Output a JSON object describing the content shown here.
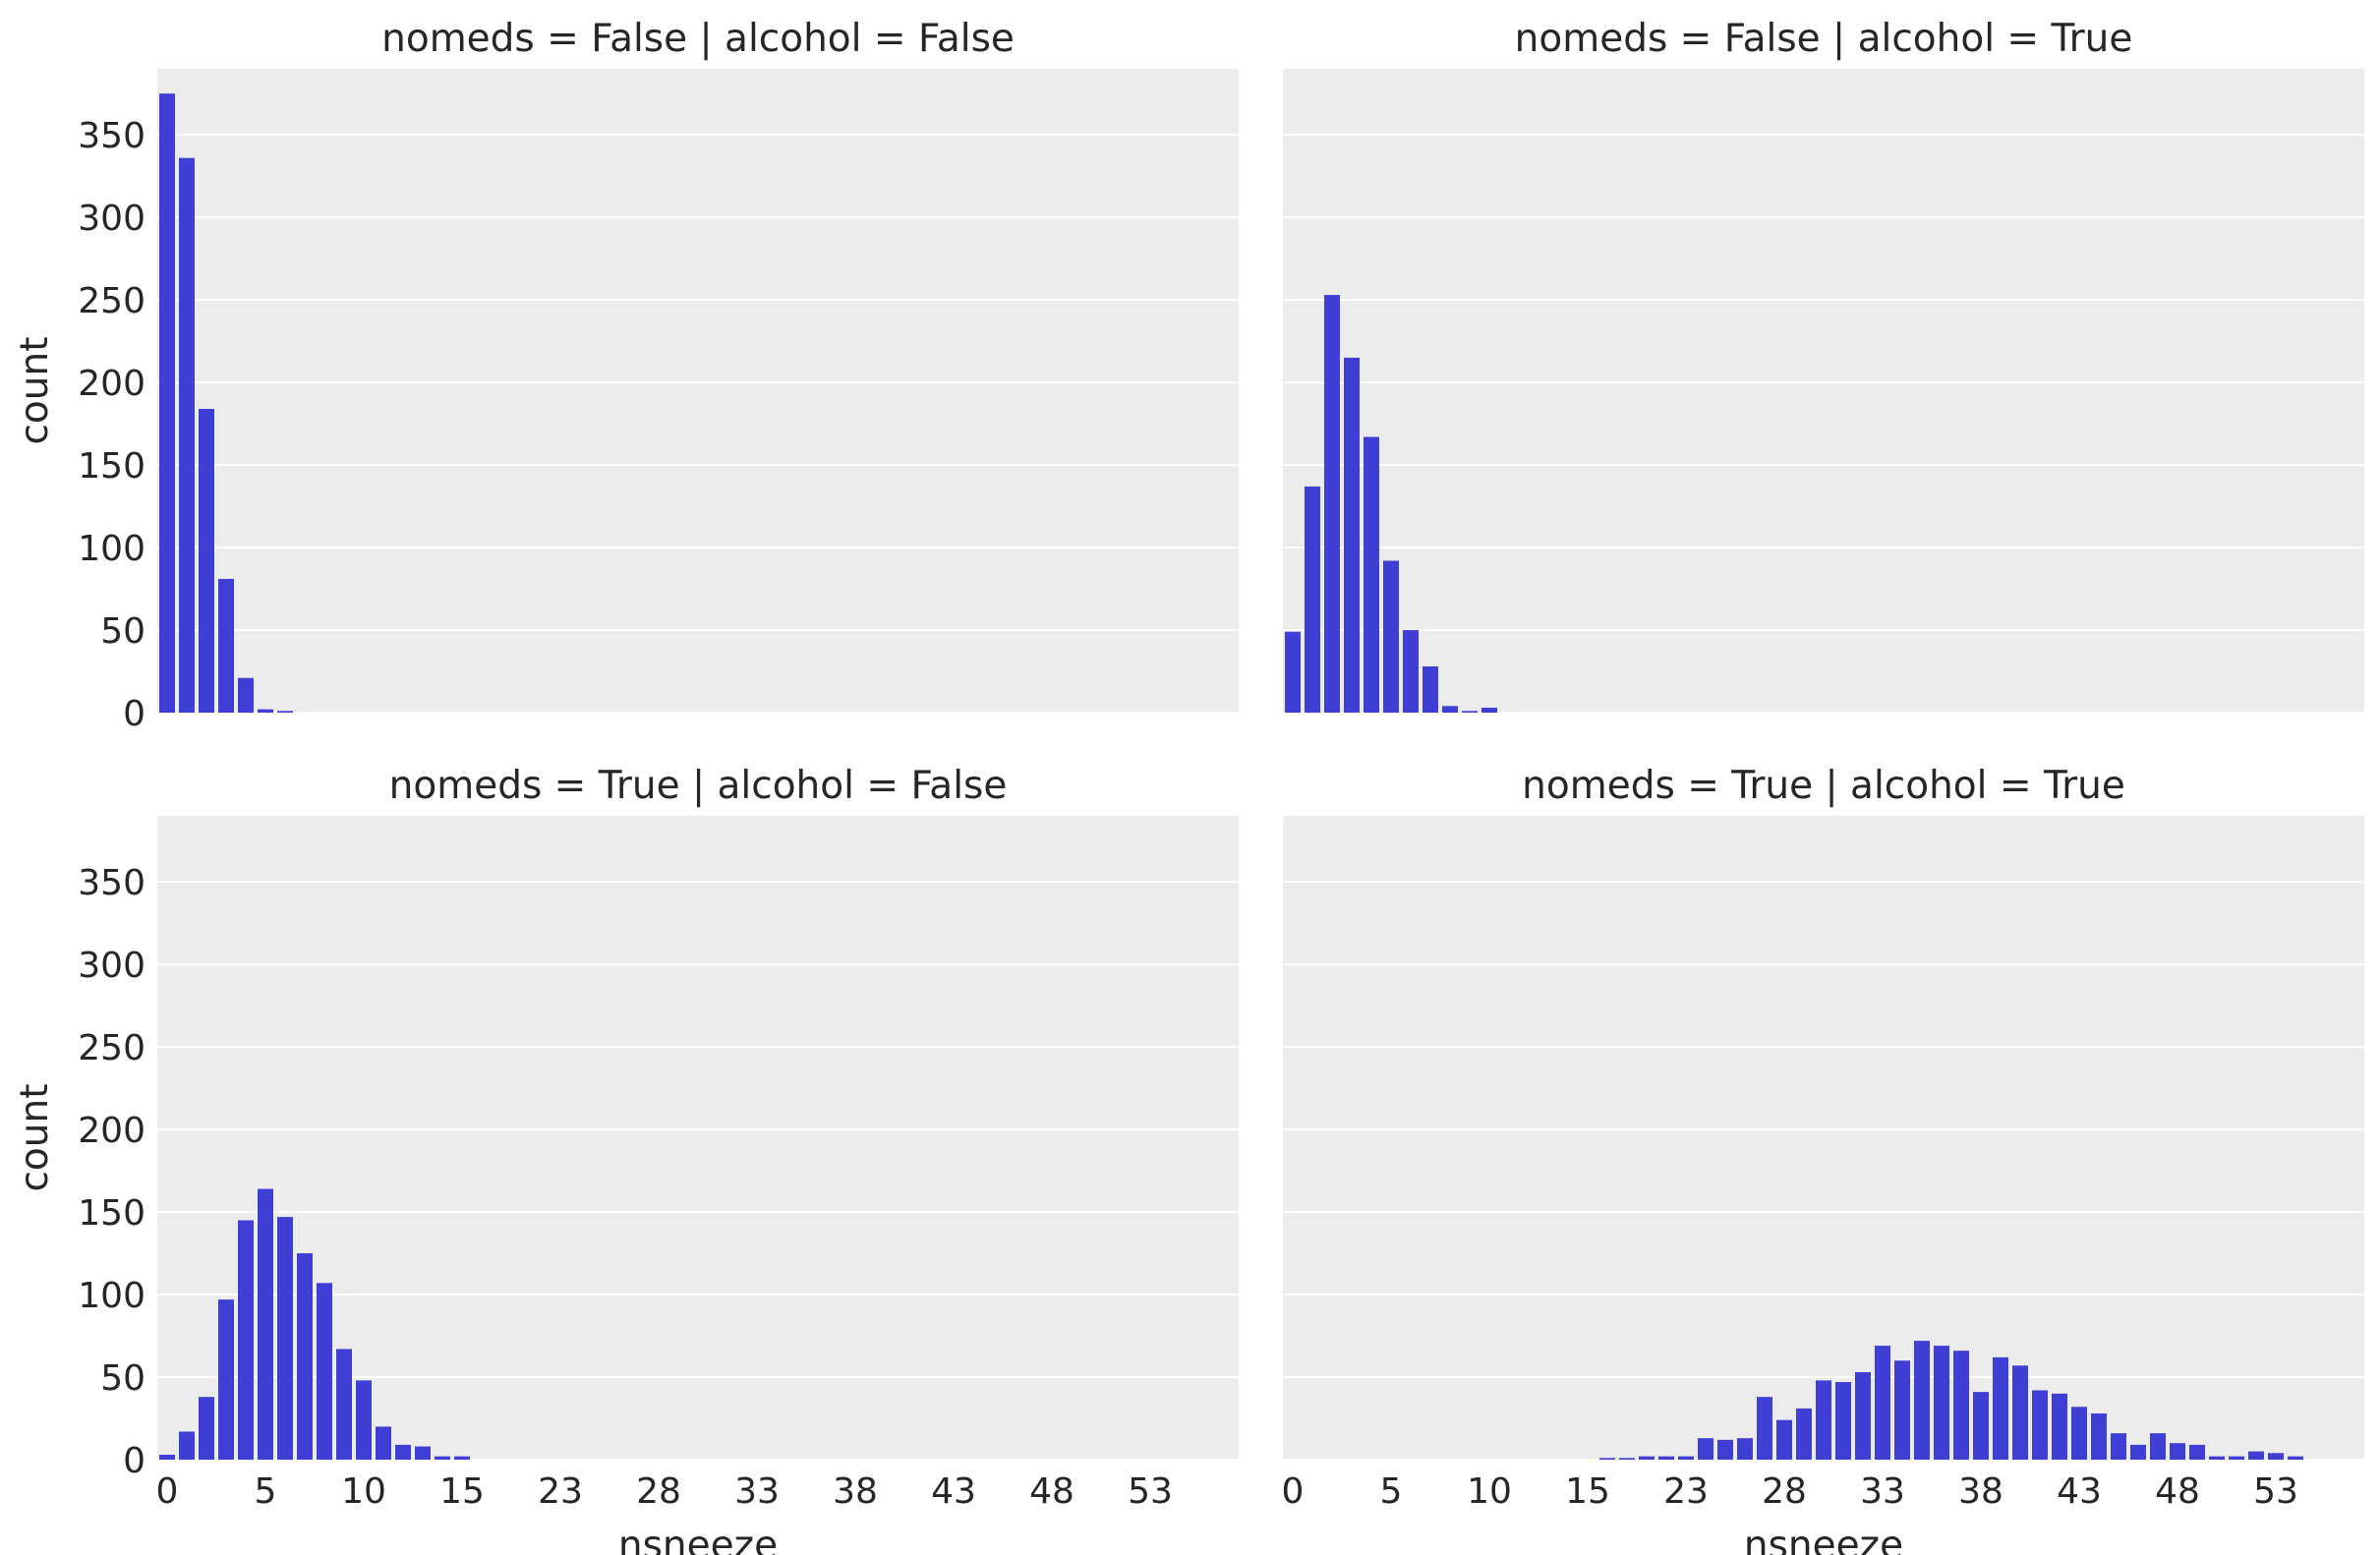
{
  "chart_data": {
    "type": "bar",
    "facet_layout": "2x2 grid, shared x and y axes",
    "bar_color": "#3f3fd6",
    "panel_background": "#ececec",
    "grid": "horizontal white gridlines",
    "xlabel": "nsneeze",
    "ylabel": "count",
    "ylim": [
      0,
      390
    ],
    "yticks": [
      0,
      50,
      100,
      150,
      200,
      250,
      300,
      350
    ],
    "xtick_labels": [
      "0",
      "5",
      "10",
      "15",
      "23",
      "28",
      "33",
      "38",
      "43",
      "48",
      "53"
    ],
    "categories": [
      "0",
      "1",
      "2",
      "3",
      "4",
      "5",
      "6",
      "7",
      "8",
      "9",
      "10",
      "11",
      "12",
      "13",
      "14",
      "15",
      "16",
      "18",
      "19",
      "20",
      "21",
      "22",
      "23",
      "24",
      "25",
      "26",
      "27",
      "28",
      "29",
      "30",
      "31",
      "32",
      "33",
      "34",
      "35",
      "36",
      "37",
      "38",
      "39",
      "40",
      "41",
      "42",
      "43",
      "44",
      "45",
      "46",
      "47",
      "48",
      "49",
      "50",
      "51",
      "52",
      "53",
      "54",
      "55"
    ],
    "panels": [
      {
        "title": "nomeds = False | alcohol = False",
        "values": [
          375,
          336,
          184,
          81,
          21,
          2,
          1,
          0,
          0,
          0,
          0,
          0,
          0,
          0,
          0,
          0,
          0,
          0,
          0,
          0,
          0,
          0,
          0,
          0,
          0,
          0,
          0,
          0,
          0,
          0,
          0,
          0,
          0,
          0,
          0,
          0,
          0,
          0,
          0,
          0,
          0,
          0,
          0,
          0,
          0,
          0,
          0,
          0,
          0,
          0,
          0,
          0,
          0,
          0,
          0
        ]
      },
      {
        "title": "nomeds = False | alcohol = True",
        "values": [
          49,
          137,
          253,
          215,
          167,
          92,
          50,
          28,
          4,
          1,
          3,
          0,
          0,
          0,
          0,
          0,
          0,
          0,
          0,
          0,
          0,
          0,
          0,
          0,
          0,
          0,
          0,
          0,
          0,
          0,
          0,
          0,
          0,
          0,
          0,
          0,
          0,
          0,
          0,
          0,
          0,
          0,
          0,
          0,
          0,
          0,
          0,
          0,
          0,
          0,
          0,
          0,
          0,
          0,
          0
        ]
      },
      {
        "title": "nomeds = True | alcohol = False",
        "values": [
          3,
          17,
          38,
          97,
          145,
          164,
          147,
          125,
          107,
          67,
          48,
          20,
          9,
          8,
          2,
          2,
          0,
          0,
          0,
          0,
          0,
          0,
          0,
          0,
          0,
          0,
          0,
          0,
          0,
          0,
          0,
          0,
          0,
          0,
          0,
          0,
          0,
          0,
          0,
          0,
          0,
          0,
          0,
          0,
          0,
          0,
          0,
          0,
          0,
          0,
          0,
          0,
          0,
          0,
          0
        ]
      },
      {
        "title": "nomeds = True | alcohol = True",
        "values": [
          0,
          0,
          0,
          0,
          0,
          0,
          0,
          0,
          0,
          0,
          0,
          0,
          0,
          0,
          0,
          0,
          1,
          1,
          2,
          2,
          2,
          13,
          12,
          13,
          38,
          24,
          31,
          48,
          47,
          53,
          69,
          60,
          72,
          69,
          66,
          41,
          62,
          57,
          42,
          40,
          32,
          28,
          16,
          9,
          16,
          10,
          9,
          2,
          2,
          5,
          4,
          2,
          0,
          0,
          0
        ]
      }
    ]
  }
}
